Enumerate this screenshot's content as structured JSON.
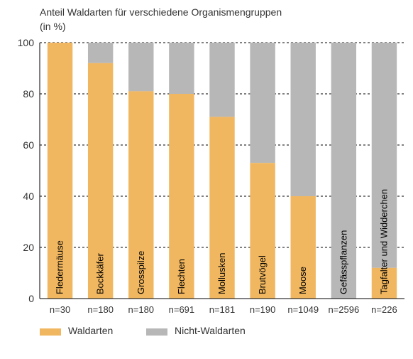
{
  "title_line1": "Anteil Waldarten für verschiedene Organismengruppen",
  "title_line2": "(in %)",
  "title_fontsize": 14,
  "title_color": "#333333",
  "ylim": [
    0,
    100
  ],
  "ytick_step": 20,
  "ytick_labels": [
    "0",
    "20",
    "40",
    "60",
    "80",
    "100"
  ],
  "tick_fontsize": 14,
  "tick_color": "#333333",
  "series": {
    "wald": {
      "label": "Waldarten",
      "color": "#f1b760"
    },
    "nicht": {
      "label": "Nicht-Waldarten",
      "color": "#b7b7b7"
    }
  },
  "categories": [
    {
      "name": "Fledermäuse",
      "n": "n=30",
      "wald": 100,
      "nicht": 0
    },
    {
      "name": "Bockkäfer",
      "n": "n=180",
      "wald": 92,
      "nicht": 8
    },
    {
      "name": "Grosspilze",
      "n": "n=180",
      "wald": 81,
      "nicht": 19
    },
    {
      "name": "Flechten",
      "n": "n=691",
      "wald": 80,
      "nicht": 20
    },
    {
      "name": "Mollusken",
      "n": "n=181",
      "wald": 71,
      "nicht": 29
    },
    {
      "name": "Brutvögel",
      "n": "n=190",
      "wald": 53,
      "nicht": 47
    },
    {
      "name": "Moose",
      "n": "n=1049",
      "wald": 40,
      "nicht": 60
    },
    {
      "name": "Gefässpflanzen",
      "n": "n=2596",
      "wald": 0,
      "nicht": 100
    },
    {
      "name": "Tagfalter und Widderchen",
      "n": "n=226",
      "wald": 12,
      "nicht": 88
    }
  ],
  "in_bar_label_fontsize": 13,
  "in_bar_label_color": "#000000",
  "n_label_fontsize": 13,
  "legend_fontsize": 14,
  "background_color": "#ffffff",
  "axis_color": "#000000",
  "grid_color": "#000000",
  "bar_width_ratio": 0.62,
  "legend_swatch_w": 30,
  "legend_swatch_h": 10
}
